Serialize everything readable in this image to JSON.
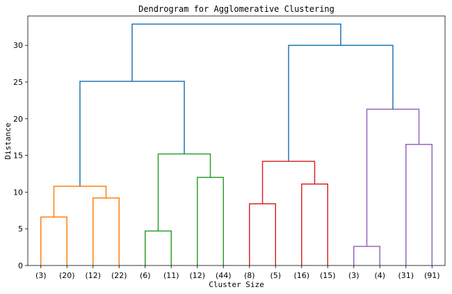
{
  "chart_data": {
    "type": "dendrogram",
    "title": "Dendrogram for Agglomerative Clustering",
    "xlabel": "Cluster Size",
    "ylabel": "Distance",
    "ylim": [
      0,
      34
    ],
    "yticks": [
      0,
      5,
      10,
      15,
      20,
      25,
      30
    ],
    "grid": false,
    "legend": "none",
    "leaves": [
      "(3)",
      "(20)",
      "(12)",
      "(22)",
      "(6)",
      "(11)",
      "(12)",
      "(44)",
      "(8)",
      "(5)",
      "(16)",
      "(15)",
      "(3)",
      "(4)",
      "(31)",
      "(91)"
    ],
    "colors": {
      "orange": "#ff7f0e",
      "green": "#2ca02c",
      "red": "#d62728",
      "purple": "#9467bd",
      "above": "#1f77b4"
    },
    "merges": [
      {
        "left": 0,
        "right": 1,
        "height": 6.6,
        "color": "orange"
      },
      {
        "left": 2,
        "right": 3,
        "height": 9.2,
        "color": "orange"
      },
      {
        "left": 16,
        "right": 17,
        "height": 10.8,
        "color": "orange"
      },
      {
        "left": 4,
        "right": 5,
        "height": 4.7,
        "color": "green"
      },
      {
        "left": 6,
        "right": 7,
        "height": 12.0,
        "color": "green"
      },
      {
        "left": 19,
        "right": 20,
        "height": 15.2,
        "color": "green"
      },
      {
        "left": 8,
        "right": 9,
        "height": 8.4,
        "color": "red"
      },
      {
        "left": 10,
        "right": 11,
        "height": 11.1,
        "color": "red"
      },
      {
        "left": 22,
        "right": 23,
        "height": 14.2,
        "color": "red"
      },
      {
        "left": 12,
        "right": 13,
        "height": 2.6,
        "color": "purple"
      },
      {
        "left": 14,
        "right": 15,
        "height": 16.5,
        "color": "purple"
      },
      {
        "left": 25,
        "right": 26,
        "height": 21.3,
        "color": "purple"
      },
      {
        "left": 18,
        "right": 21,
        "height": 25.1,
        "color": "above"
      },
      {
        "left": 24,
        "right": 27,
        "height": 30.0,
        "color": "above"
      },
      {
        "left": 28,
        "right": 29,
        "height": 32.9,
        "color": "above"
      }
    ]
  }
}
